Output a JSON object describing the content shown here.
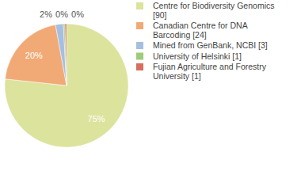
{
  "chart_data": {
    "type": "pie",
    "categories": [
      "Centre for Biodiversity Genomics [90]",
      "Canadian Centre for DNA Barcoding [24]",
      "Mined from GenBank, NCBI [3]",
      "University of Helsinki [1]",
      "Fujian Agriculture and Forestry University [1]"
    ],
    "values": [
      75,
      20,
      2,
      0.4,
      0.4
    ],
    "value_labels": [
      "75%",
      "20%",
      "2%",
      "0%",
      "0%"
    ],
    "colors": [
      "#dce39d",
      "#f1aa76",
      "#a5bfe0",
      "#9fcb7b",
      "#d66f5c"
    ],
    "data_labels": true,
    "legend": "right"
  }
}
